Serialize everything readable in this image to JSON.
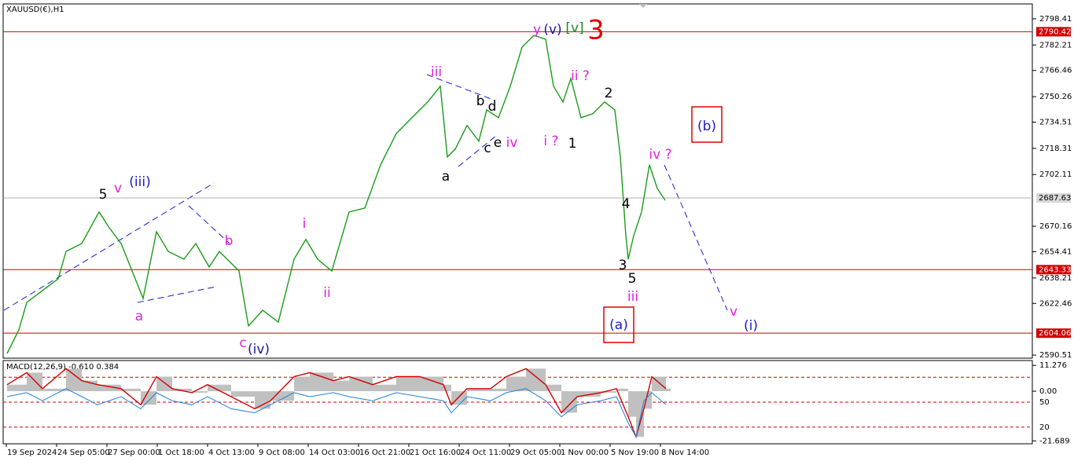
{
  "chart_data": {
    "type": "line",
    "title": "XAUUSD(€),H1",
    "color": "#1a9c1a",
    "x": [
      2.5,
      10,
      15,
      25,
      35,
      40,
      50,
      61,
      67.5,
      75,
      85,
      89,
      97.5,
      105,
      115,
      122.5,
      131,
      137.5,
      150,
      156,
      165,
      175,
      185,
      192.5,
      200,
      209,
      220,
      230,
      240,
      250,
      260,
      270,
      278,
      282.5,
      287.5,
      295,
      302.5,
      307.5,
      315,
      322.5,
      330,
      337.5,
      345,
      350,
      356,
      361,
      367.5,
      375,
      382.5,
      389,
      392.5,
      396,
      397.5,
      401,
      406,
      411,
      416,
      421
    ],
    "values": [
      2591.5,
      2606.1,
      2623.1,
      2630.4,
      2637.7,
      2654.6,
      2659.5,
      2679,
      2669.2,
      2659.5,
      2635.2,
      2625.5,
      2666.8,
      2654.6,
      2649.8,
      2659.5,
      2645,
      2654.6,
      2642.5,
      2608.5,
      2618.2,
      2610.9,
      2649.8,
      2662,
      2649.8,
      2642.5,
      2679,
      2681.4,
      2708.1,
      2727.5,
      2737.3,
      2747,
      2756.7,
      2713,
      2717.8,
      2732.5,
      2722.7,
      2742.1,
      2737.3,
      2756.7,
      2780.9,
      2788.2,
      2785.8,
      2756.7,
      2747,
      2761.5,
      2737.3,
      2739.7,
      2747,
      2742.1,
      2713,
      2664.4,
      2649.8,
      2664.4,
      2679,
      2708.1,
      2693.5,
      2686.2
    ],
    "xlim": [
      0,
      656
    ],
    "xticks": [
      {
        "value": 2,
        "label": "19 Sep 2024"
      },
      {
        "value": 34,
        "label": "24 Sep 05:00"
      },
      {
        "value": 66,
        "label": "27 Sep 00:00"
      },
      {
        "value": 98,
        "label": "1 Oct 18:00"
      },
      {
        "value": 130,
        "label": "4 Oct 13:00"
      },
      {
        "value": 162,
        "label": "9 Oct 08:00"
      },
      {
        "value": 194,
        "label": "14 Oct 03:00"
      },
      {
        "value": 226,
        "label": "16 Oct 21:00"
      },
      {
        "value": 258,
        "label": "21 Oct 16:00"
      },
      {
        "value": 290,
        "label": "24 Oct 11:00"
      },
      {
        "value": 322,
        "label": "29 Oct 05:00"
      },
      {
        "value": 354,
        "label": "1 Nov 00:00"
      },
      {
        "value": 386,
        "label": "5 Nov 19:00"
      },
      {
        "value": 418,
        "label": "8 Nov 14:00"
      }
    ],
    "ylim": [
      2588.6,
      2807.6
    ],
    "yticks": [
      2798.41,
      2782.21,
      2766.46,
      2750.26,
      2734.51,
      2718.31,
      2702.11,
      2670.16,
      2654.41,
      2638.21,
      2622.46,
      2590.51
    ],
    "levels": [
      2790.42,
      2643.33,
      2604.06
    ],
    "level_color": "#d40000",
    "current_price": 2687.63,
    "annotations": [
      {
        "text": "y",
        "color": "#e020e0"
      },
      {
        "text": "(v)",
        "color": "#1a1aa0"
      },
      {
        "text": "[v]",
        "color": "#1a8a1a"
      },
      {
        "text": "3",
        "color": "#e00000"
      },
      {
        "text": "iii",
        "color": "#e020e0"
      },
      {
        "text": "ii ?",
        "color": "#e020e0"
      },
      {
        "text": "2",
        "color": "#000000"
      },
      {
        "text": "b",
        "color": "#000000"
      },
      {
        "text": "d",
        "color": "#000000"
      },
      {
        "text": "i ?",
        "color": "#e020e0"
      },
      {
        "text": "1",
        "color": "#000000"
      },
      {
        "text": "e",
        "color": "#000000"
      },
      {
        "text": "c",
        "color": "#000000"
      },
      {
        "text": "iv",
        "color": "#e020e0"
      },
      {
        "text": "iv ?",
        "color": "#e020e0"
      },
      {
        "text": "a",
        "color": "#000000"
      },
      {
        "text": "(b)",
        "color": "#1a1ad0"
      },
      {
        "text": "5",
        "color": "#000000"
      },
      {
        "text": "v",
        "color": "#e020e0"
      },
      {
        "text": "(iii)",
        "color": "#1a1ad0"
      },
      {
        "text": "4",
        "color": "#000000"
      },
      {
        "text": "i",
        "color": "#e020e0"
      },
      {
        "text": "b",
        "color": "#e020e0"
      },
      {
        "text": "3",
        "color": "#000000"
      },
      {
        "text": "5",
        "color": "#000000"
      },
      {
        "text": "ii",
        "color": "#e020e0"
      },
      {
        "text": "iii",
        "color": "#e020e0"
      },
      {
        "text": "a",
        "color": "#e020e0"
      },
      {
        "text": "v",
        "color": "#e020e0"
      },
      {
        "text": "(i)",
        "color": "#1a1ad0"
      },
      {
        "text": "(a)",
        "color": "#1a1ad0"
      },
      {
        "text": "c",
        "color": "#e020e0"
      },
      {
        "text": "(iv)",
        "color": "#1a1aa0"
      }
    ],
    "indicator": {
      "title": "MACD(12,26,9) -0.610 0.384",
      "x": [
        2.5,
        15,
        25,
        40,
        50,
        60,
        75,
        87.5,
        97.5,
        107.5,
        120,
        130,
        145,
        160,
        170,
        185,
        195,
        210,
        220,
        235,
        250,
        265,
        280,
        285,
        295,
        310,
        320,
        332.5,
        345,
        355,
        365,
        380,
        390,
        397.5,
        402.5,
        407.5,
        412.5,
        421.5
      ],
      "signal": [
        2.86,
        8.12,
        1.11,
        9.87,
        4.61,
        2.86,
        1.11,
        -5.91,
        6.37,
        1.11,
        -0.65,
        2.86,
        -2.4,
        -7.66,
        -4.16,
        6.37,
        8.12,
        4.61,
        6.37,
        2.86,
        6.37,
        6.37,
        2.86,
        -5.91,
        1.11,
        1.11,
        6.37,
        9.87,
        2.86,
        -9.41,
        -2.4,
        -0.65,
        1.11,
        -11.17,
        -19.94,
        -7.66,
        6.37,
        1.11
      ],
      "signal_color": "#d40000",
      "main": [
        -2.4,
        -0.65,
        -4.16,
        1.11,
        -2.4,
        -5.91,
        -2.4,
        -7.66,
        -0.65,
        -4.16,
        -5.91,
        -2.4,
        -7.66,
        -9.41,
        -5.91,
        -0.65,
        -2.4,
        -0.65,
        -2.4,
        -4.16,
        -0.65,
        -2.4,
        -4.16,
        -9.41,
        -2.4,
        -4.16,
        -0.65,
        1.11,
        -4.16,
        -11.17,
        -5.91,
        -4.16,
        -2.4,
        -13.9,
        -19.94,
        -4.16,
        -0.65,
        -5.91
      ],
      "main_color": "#1e7fd8",
      "ylim": [
        -22.97,
        13.4
      ],
      "yticks": [
        11.276,
        {
          "value": 0,
          "label": "0.00"
        },
        -21.689
      ],
      "y2lim": [
        0,
        100
      ],
      "y2ticks": [
        50,
        20
      ],
      "levels": [
        80,
        50,
        20
      ]
    }
  }
}
